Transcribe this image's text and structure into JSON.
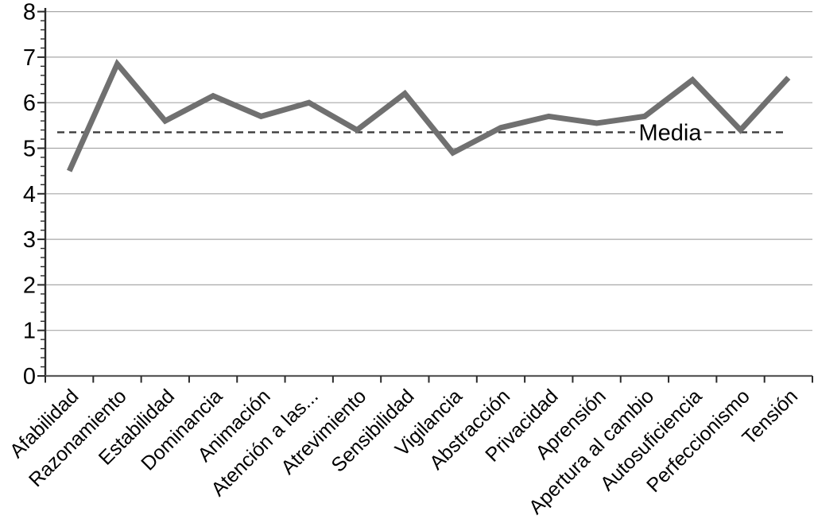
{
  "chart_data": {
    "type": "line",
    "title": "",
    "categories": [
      "Afabilidad",
      "Razonamiento",
      "Estabilidad",
      "Dominancia",
      "Animación",
      "Atención a las...",
      "Atrevimiento",
      "Sensibilidad",
      "Vigilancia",
      "Abstracción",
      "Privacidad",
      "Aprensión",
      "Apertura al cambio",
      "Autosuficiencia",
      "Perfeccionismo",
      "Tensión"
    ],
    "values": [
      4.5,
      6.85,
      5.6,
      6.15,
      5.7,
      6.0,
      5.4,
      6.2,
      4.9,
      5.45,
      5.7,
      5.55,
      5.7,
      6.5,
      5.4,
      6.55
    ],
    "media_line": {
      "label": "Media",
      "value": 5.35
    },
    "ylim": [
      0,
      8
    ],
    "y_ticks": [
      0,
      1,
      2,
      3,
      4,
      5,
      6,
      7,
      8
    ],
    "y_minor_step": 0.2,
    "xlabel": "",
    "ylabel": "",
    "grid": true,
    "legend_position": "none",
    "colors": {
      "line": "#707070",
      "grid": "#a8a8a8",
      "axis": "#2a2a2a",
      "x_axis": "#5a5a5a",
      "media_line": "#3c3c3c",
      "text": "#000000",
      "background": "#ffffff"
    }
  }
}
